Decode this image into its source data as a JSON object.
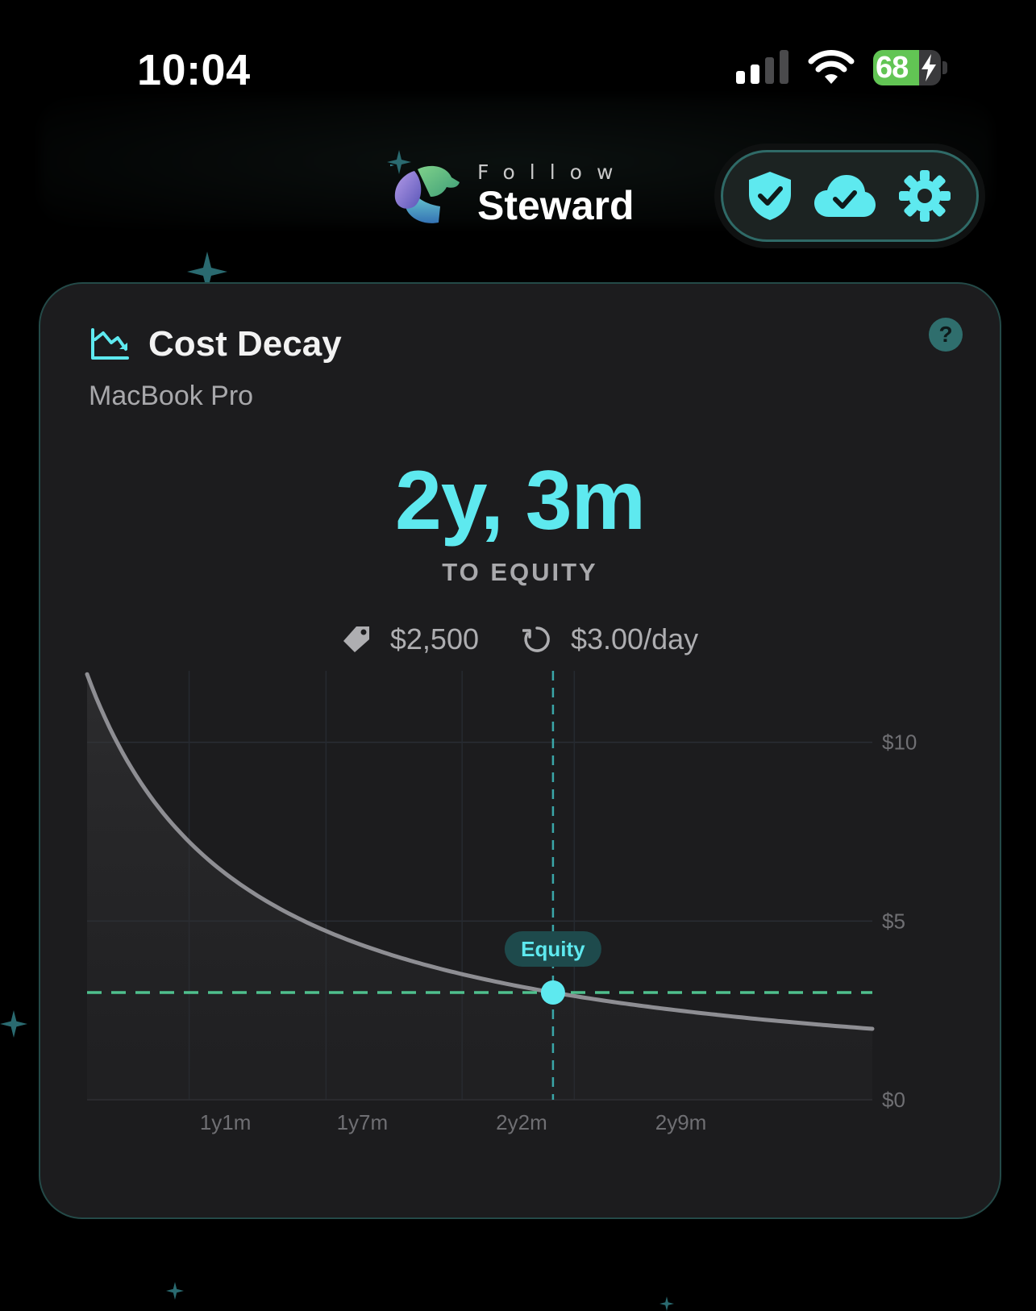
{
  "status_bar": {
    "time": "10:04",
    "battery_level": "68",
    "battery_fraction": 0.68,
    "charging": true,
    "signal_bars": 2,
    "wifi": "full"
  },
  "header": {
    "logo_top": "Follow",
    "logo_main": "Steward",
    "actions": [
      {
        "name": "shield-check-icon"
      },
      {
        "name": "cloud-check-icon"
      },
      {
        "name": "gear-icon"
      }
    ]
  },
  "card": {
    "title": "Cost Decay",
    "subtitle": "MacBook Pro",
    "help_label": "?",
    "headline": "2y, 3m",
    "headline_caption": "TO EQUITY",
    "price": "$2,500",
    "daily_rate": "$3.00/day"
  },
  "colors": {
    "accent": "#5ee9ef",
    "equity_line": "#4fc08d",
    "curve": "#8e8e93",
    "card_bg": "#1c1c1e",
    "card_border": "#244a48"
  },
  "chart_data": {
    "type": "line",
    "series": [
      {
        "values": [
          {
            "x_months": 1,
            "y": 12
          },
          {
            "x_months": 2,
            "y": 6.2
          },
          {
            "x_months": 4,
            "y": 3.85
          },
          {
            "x_months": 6,
            "y": 3.15
          },
          {
            "x_months": 12,
            "y": 2.75
          },
          {
            "x_months": 28,
            "y": 3.0
          },
          {
            "x_months": 38,
            "y": 2.2
          }
        ]
      }
    ],
    "curve_formula": "cost_per_day = price / days_owned",
    "price": 2500,
    "x_range_days": [
      210,
      1260
    ],
    "y_range": [
      0,
      12
    ],
    "y_ticks": [
      {
        "value": 10,
        "label": "$10"
      },
      {
        "value": 5,
        "label": "$5"
      },
      {
        "value": 0,
        "label": "$0"
      }
    ],
    "x_ticks": [
      {
        "days": 395,
        "label": "1y1m"
      },
      {
        "days": 578,
        "label": "1y7m"
      },
      {
        "days": 791,
        "label": "2y2m"
      },
      {
        "days": 1004,
        "label": "2y9m"
      }
    ],
    "equity_threshold": 3.0,
    "equity_days": 833,
    "equity_label": "Equity",
    "grid": true,
    "area_fill": true
  }
}
